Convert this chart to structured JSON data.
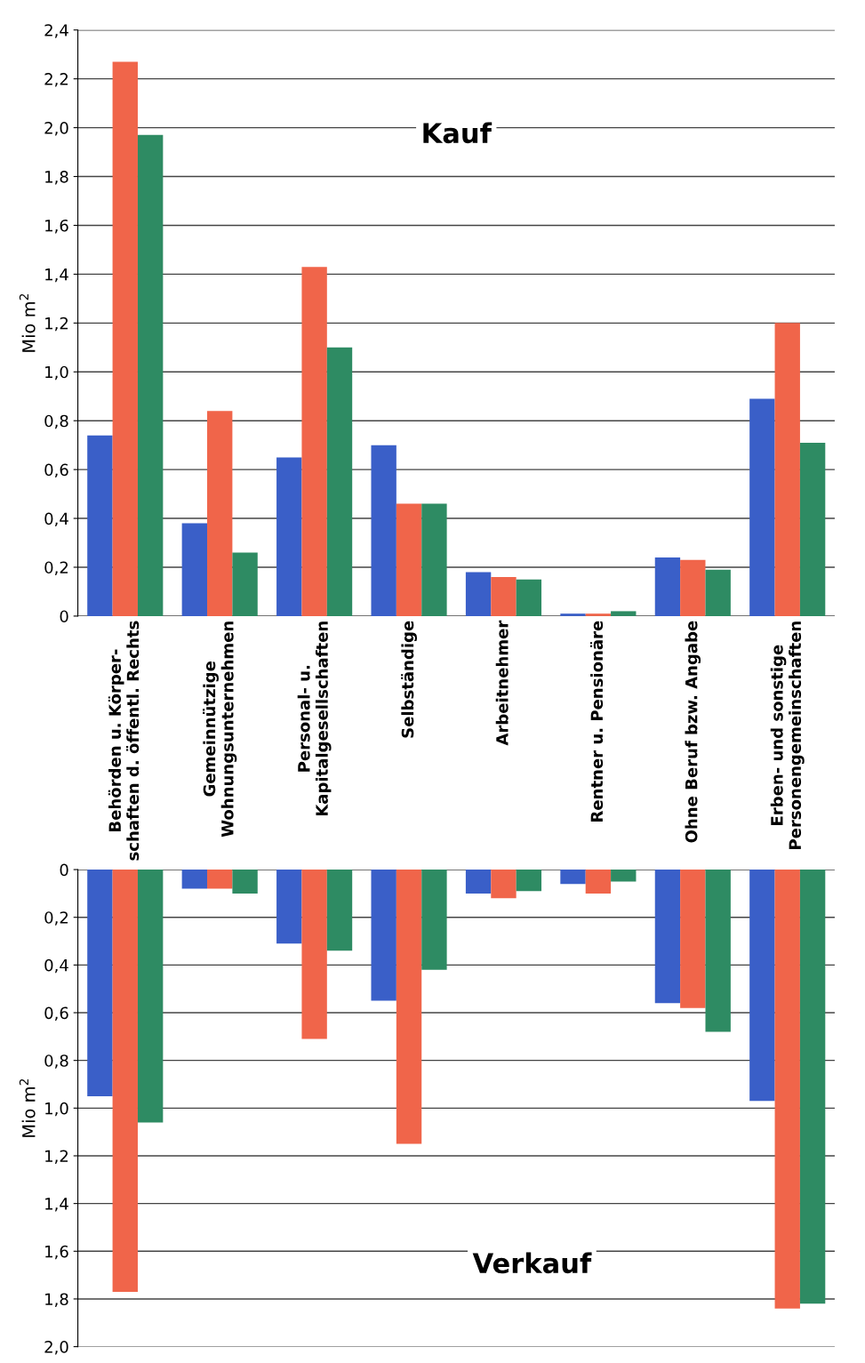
{
  "chart_data": [
    {
      "type": "bar",
      "ylabel": "Mio m$^{2}$",
      "annotations": [
        "Kauf"
      ],
      "grid": "y",
      "categories": [
        "Behörden u. Körper-\nschaften d. öffentl. Rechts",
        "Gemeinnützige\nWohnungsunternehmen",
        "Personal- u.\nKapitalgesellschaften",
        "Selbständige",
        "Arbeitnehmer",
        "Rentner u. Pensionäre",
        "Ohne Beruf bzw. Angabe",
        "Erben- und sonstige\nPersonengemeinschaften"
      ],
      "series": [
        {
          "color": "#3a5fc8",
          "values": [
            0.74,
            0.38,
            0.65,
            0.7,
            0.18,
            0.01,
            0.24,
            0.89
          ]
        },
        {
          "color": "#f0654a",
          "values": [
            2.27,
            0.84,
            1.43,
            0.46,
            0.16,
            0.01,
            0.23,
            1.2
          ]
        },
        {
          "color": "#2e8b63",
          "values": [
            1.97,
            0.26,
            1.1,
            0.46,
            0.15,
            0.02,
            0.19,
            0.71
          ]
        }
      ],
      "ylim": [
        0,
        2.4
      ],
      "yticks": [
        0,
        {
          "value": 0.2,
          "label": "0,2"
        },
        {
          "value": 0.4,
          "label": "0,4"
        },
        {
          "value": 0.6,
          "label": "0,6"
        },
        {
          "value": 0.8,
          "label": "0,8"
        },
        {
          "value": 1.0,
          "label": "1,0"
        },
        {
          "value": 1.2,
          "label": "1,2"
        },
        {
          "value": 1.4,
          "label": "1,4"
        },
        {
          "value": 1.6,
          "label": "1,6"
        },
        {
          "value": 1.8,
          "label": "1,8"
        },
        {
          "value": 2.0,
          "label": "2,0"
        },
        {
          "value": 2.2,
          "label": "2,2"
        },
        {
          "value": 2.4,
          "label": "2,4"
        }
      ]
    },
    {
      "type": "bar",
      "ylabel": "Mio m$^{2}$",
      "annotations": [
        "Verkauf"
      ],
      "grid": "y",
      "tick_labels": "y",
      "categories": [
        null,
        null,
        null,
        null,
        null,
        null,
        null,
        null
      ],
      "series": [
        {
          "color": "#3a5fc8",
          "values": [
            0.95,
            0.08,
            0.31,
            0.55,
            0.1,
            0.06,
            0.56,
            0.97
          ]
        },
        {
          "color": "#f0654a",
          "values": [
            1.77,
            0.08,
            0.71,
            1.15,
            0.12,
            0.1,
            0.58,
            1.84
          ]
        },
        {
          "color": "#2e8b63",
          "values": [
            1.06,
            0.1,
            0.34,
            0.42,
            0.09,
            0.05,
            0.68,
            1.82
          ]
        }
      ],
      "ylim": [
        2.0,
        0
      ],
      "yticks": [
        0,
        {
          "value": 0.2,
          "label": "0,2"
        },
        {
          "value": 0.4,
          "label": "0,4"
        },
        {
          "value": 0.6,
          "label": "0,6"
        },
        {
          "value": 0.8,
          "label": "0,8"
        },
        {
          "value": 1.0,
          "label": "1,0"
        },
        {
          "value": 1.2,
          "label": "1,2"
        },
        {
          "value": 1.4,
          "label": "1,4"
        },
        {
          "value": 1.6,
          "label": "1,6"
        },
        {
          "value": 1.8,
          "label": "1,8"
        },
        {
          "value": 2.0,
          "label": "2,0"
        }
      ]
    }
  ]
}
